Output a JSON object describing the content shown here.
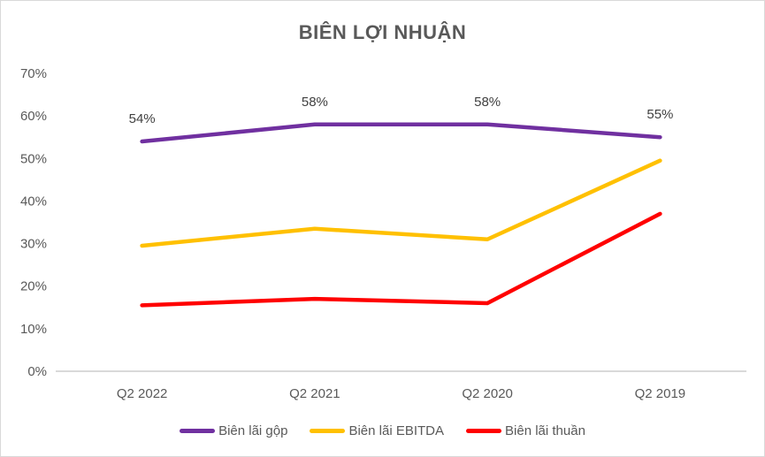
{
  "chart_data": {
    "type": "line",
    "title": "BIÊN LỢI NHUẬN",
    "categories": [
      "Q2 2022",
      "Q2 2021",
      "Q2 2020",
      "Q2 2019"
    ],
    "series": [
      {
        "name": "Biên lãi gộp",
        "color": "#7030A0",
        "values": [
          54,
          58,
          58,
          55
        ],
        "data_labels": [
          "54%",
          "58%",
          "58%",
          "55%"
        ]
      },
      {
        "name": "Biên lãi EBITDA",
        "color": "#FFC000",
        "values": [
          29.5,
          33.5,
          31,
          49.5
        ]
      },
      {
        "name": "Biên lãi thuần",
        "color": "#FF0000",
        "values": [
          15.5,
          17,
          16,
          37
        ]
      }
    ],
    "y_axis": {
      "min": 0,
      "max": 70,
      "step": 10,
      "tick_labels": [
        "0%",
        "10%",
        "20%",
        "30%",
        "40%",
        "50%",
        "60%",
        "70%"
      ]
    },
    "xlabel": "",
    "ylabel": "",
    "grid": false,
    "legend_position": "bottom"
  },
  "styles": {
    "text_color": "#595959",
    "data_label_color": "#404040",
    "axis_line_color": "#d9d9d9",
    "background": "#ffffff"
  }
}
